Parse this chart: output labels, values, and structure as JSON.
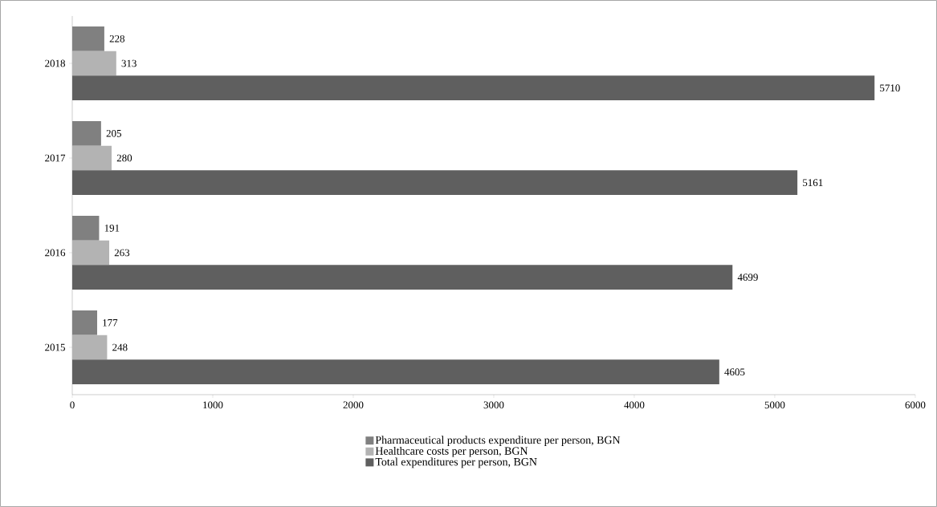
{
  "chart_data": {
    "type": "bar",
    "orientation": "horizontal",
    "categories": [
      "2018",
      "2017",
      "2016",
      "2015"
    ],
    "series": [
      {
        "name": "Pharmaceutical products expenditure per person, BGN",
        "color": "#808080",
        "values": [
          228,
          205,
          191,
          177
        ]
      },
      {
        "name": "Healthcare costs per person, BGN",
        "color": "#b3b3b3",
        "values": [
          313,
          280,
          263,
          248
        ]
      },
      {
        "name": "Total expenditures per person, BGN",
        "color": "#5f5f5f",
        "values": [
          5710,
          5161,
          4699,
          4605
        ]
      }
    ],
    "xlim": [
      0,
      6000
    ],
    "xticks": [
      0,
      1000,
      2000,
      3000,
      4000,
      5000,
      6000
    ],
    "data_labels": true,
    "grid": false,
    "legend": "bottom"
  }
}
